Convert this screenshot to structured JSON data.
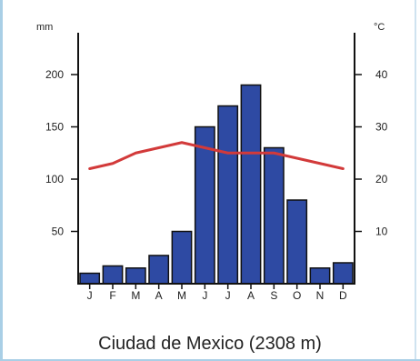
{
  "chart_data": {
    "type": "bar",
    "title": "Ciudad de Mexico (2308 m)",
    "categories": [
      "J",
      "F",
      "M",
      "A",
      "M",
      "J",
      "J",
      "A",
      "S",
      "O",
      "N",
      "D"
    ],
    "series": [
      {
        "type": "bar",
        "axis": "left",
        "values": [
          10,
          17,
          15,
          27,
          50,
          150,
          170,
          190,
          130,
          80,
          15,
          20
        ]
      },
      {
        "type": "line",
        "axis": "right",
        "values": [
          22,
          23,
          25,
          26,
          27,
          26,
          25,
          25,
          25,
          24,
          23,
          22
        ]
      }
    ],
    "left_axis": {
      "unit": "mm",
      "ylim": [
        0,
        240
      ],
      "ticks": [
        50,
        100,
        150,
        200
      ]
    },
    "right_axis": {
      "unit": "°C",
      "ylim": [
        0,
        48
      ],
      "ticks": [
        10,
        20,
        30,
        40
      ]
    },
    "colors": {
      "bar": "#2e4aa3",
      "line": "#d23a3a"
    }
  }
}
